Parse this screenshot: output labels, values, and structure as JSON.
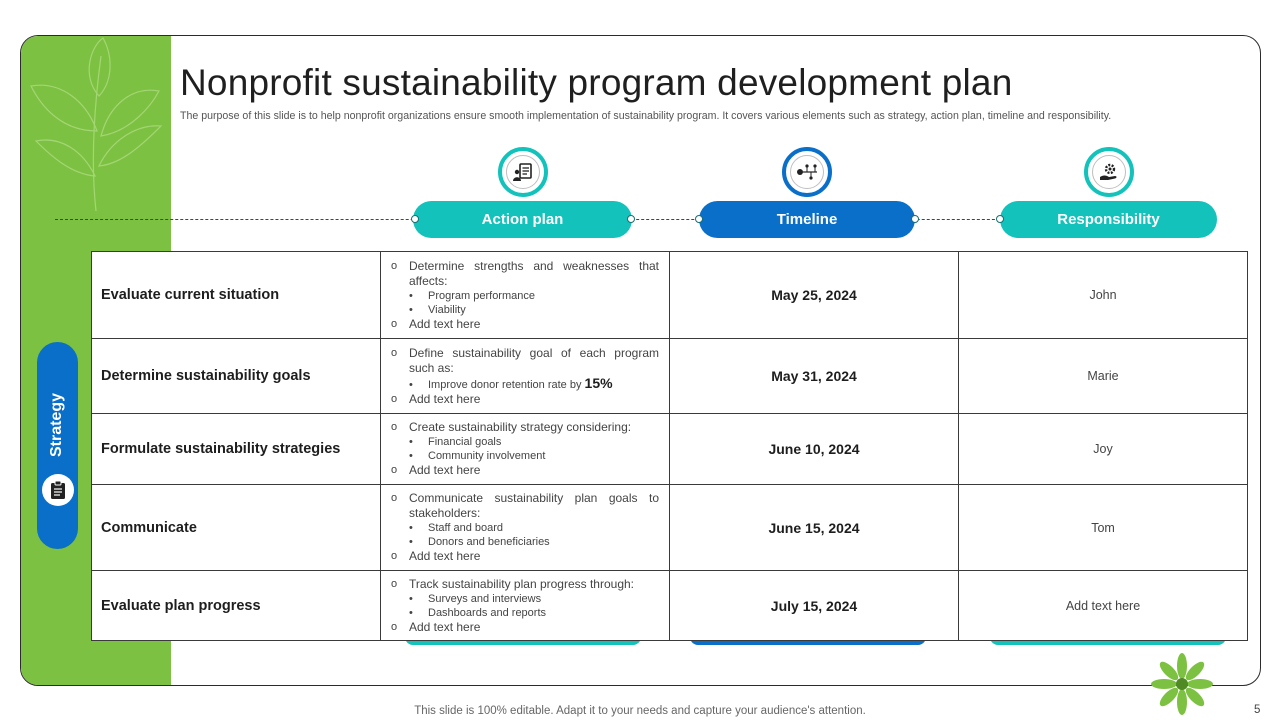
{
  "slide": {
    "title": "Nonprofit sustainability program development plan",
    "subtitle": "The purpose of this slide is to help nonprofit organizations ensure smooth implementation of sustainability program. It covers various elements such as strategy, action plan, timeline and responsibility.",
    "footer": "This slide is 100% editable. Adapt it to your needs and capture your audience's attention.",
    "page_number": "5"
  },
  "colors": {
    "green": "#7dc142",
    "teal": "#13c2bb",
    "blue": "#0a6fc8"
  },
  "headers": {
    "strategy": {
      "label": "Strategy",
      "icon": "clipboard-icon"
    },
    "action_plan": {
      "label": "Action plan",
      "icon": "checklist-person-icon"
    },
    "timeline": {
      "label": "Timeline",
      "icon": "timeline-network-icon"
    },
    "responsibility": {
      "label": "Responsibility",
      "icon": "hand-gear-icon"
    }
  },
  "rows": [
    {
      "strategy": "Evaluate current situation",
      "action_lead": "Determine strengths and weaknesses that affects:",
      "bullets": [
        "Program performance",
        "Viability"
      ],
      "action_tail": "Add text here",
      "timeline": "May 25, 2024",
      "responsibility": "John"
    },
    {
      "strategy": "Determine sustainability goals",
      "action_lead": "Define sustainability goal of each program such as:",
      "bullets": [
        "Improve donor retention rate by"
      ],
      "bullet_highlight": "15%",
      "action_tail": "Add text here",
      "timeline": "May 31, 2024",
      "responsibility": "Marie"
    },
    {
      "strategy": "Formulate sustainability strategies",
      "action_lead": "Create sustainability strategy considering:",
      "bullets": [
        "Financial goals",
        "Community involvement"
      ],
      "action_tail": "Add text here",
      "timeline": "June 10, 2024",
      "responsibility": "Joy"
    },
    {
      "strategy": "Communicate",
      "action_lead": "Communicate sustainability plan goals to stakeholders:",
      "bullets": [
        "Staff and board",
        "Donors and beneficiaries"
      ],
      "action_tail": "Add text here",
      "timeline": "June 15, 2024",
      "responsibility": "Tom"
    },
    {
      "strategy": "Evaluate plan progress",
      "action_lead": "Track sustainability plan progress through:",
      "bullets": [
        "Surveys and interviews",
        "Dashboards and reports"
      ],
      "action_tail": "Add text here",
      "timeline": "July 15, 2024",
      "responsibility": "Add text here"
    }
  ],
  "markers": {
    "outline_bullet": "o",
    "dot_bullet": "•"
  }
}
